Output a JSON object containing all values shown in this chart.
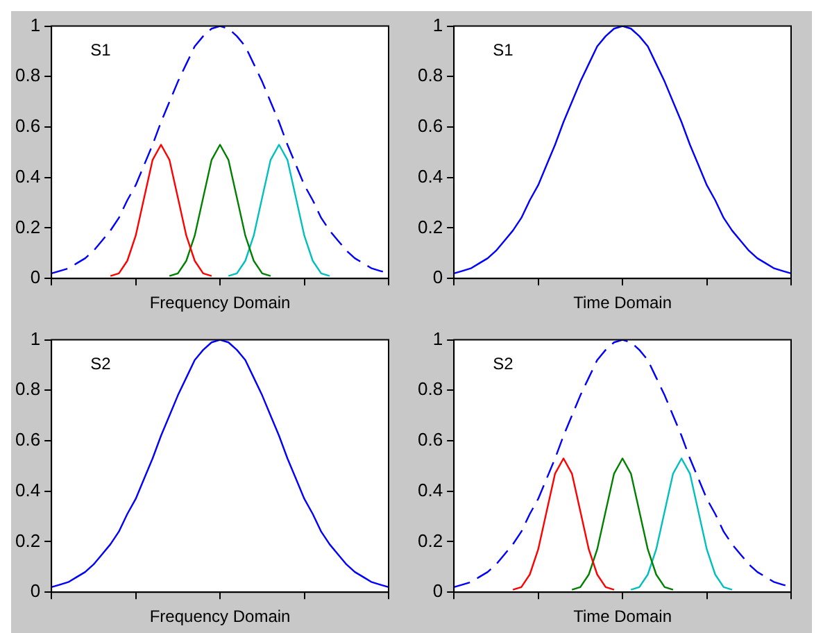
{
  "chart_data": [
    {
      "type": "line",
      "xlabel": "Frequency Domain",
      "annotations": [
        "S1"
      ],
      "categories": [
        null,
        null,
        null,
        null,
        null,
        null,
        null,
        null,
        null,
        null,
        null,
        null,
        null,
        null,
        null,
        null,
        null,
        null,
        null,
        null,
        null,
        null,
        null,
        null,
        null,
        null,
        null,
        null,
        null,
        null,
        null,
        null,
        null,
        null,
        null,
        null,
        null,
        null,
        null,
        null,
        null
      ],
      "ylim": [
        0,
        1
      ],
      "yticks": [
        0,
        0.2,
        0.4,
        0.6,
        0.8,
        1
      ],
      "tick_labels": "y",
      "series": [
        {
          "color": "#0000ff",
          "line_style": "dashed",
          "values": [
            0.02,
            0.03,
            0.04,
            0.06,
            0.08,
            0.11,
            0.15,
            0.19,
            0.24,
            0.31,
            0.37,
            0.45,
            0.53,
            0.62,
            0.7,
            0.78,
            0.85,
            0.92,
            0.96,
            0.99,
            1,
            0.99,
            0.96,
            0.92,
            0.85,
            0.78,
            0.7,
            0.62,
            0.53,
            0.45,
            0.37,
            0.31,
            0.24,
            0.19,
            0.15,
            0.11,
            0.08,
            0.06,
            0.04,
            0.03,
            0.02
          ]
        },
        {
          "color": "#ff0000",
          "line_style": "solid",
          "values": [
            null,
            null,
            null,
            null,
            null,
            null,
            null,
            0.01,
            0.02,
            0.07,
            0.17,
            0.32,
            0.47,
            0.53,
            0.47,
            0.32,
            0.17,
            0.07,
            0.02,
            0.01,
            null,
            null,
            null,
            null,
            null,
            null,
            null,
            null,
            null,
            null,
            null,
            null,
            null,
            null,
            null,
            null,
            null,
            null,
            null,
            null,
            null
          ]
        },
        {
          "color": "#008000",
          "line_style": "solid",
          "values": [
            null,
            null,
            null,
            null,
            null,
            null,
            null,
            null,
            null,
            null,
            null,
            null,
            null,
            null,
            0.01,
            0.02,
            0.07,
            0.17,
            0.32,
            0.47,
            0.53,
            0.47,
            0.32,
            0.17,
            0.07,
            0.02,
            0.01,
            null,
            null,
            null,
            null,
            null,
            null,
            null,
            null,
            null,
            null,
            null,
            null,
            null,
            null
          ]
        },
        {
          "color": "#00bfbf",
          "line_style": "solid",
          "values": [
            null,
            null,
            null,
            null,
            null,
            null,
            null,
            null,
            null,
            null,
            null,
            null,
            null,
            null,
            null,
            null,
            null,
            null,
            null,
            null,
            null,
            0.01,
            0.02,
            0.07,
            0.17,
            0.32,
            0.47,
            0.53,
            0.47,
            0.32,
            0.17,
            0.07,
            0.02,
            0.01,
            null,
            null,
            null,
            null,
            null,
            null,
            null
          ]
        }
      ]
    },
    {
      "type": "line",
      "xlabel": "Time Domain",
      "annotations": [
        "S1"
      ],
      "categories": [
        null,
        null,
        null,
        null,
        null,
        null,
        null,
        null,
        null,
        null,
        null,
        null,
        null,
        null,
        null,
        null,
        null,
        null,
        null,
        null,
        null,
        null,
        null,
        null,
        null,
        null,
        null,
        null,
        null,
        null,
        null,
        null,
        null,
        null,
        null,
        null,
        null,
        null,
        null,
        null,
        null
      ],
      "ylim": [
        0,
        1
      ],
      "yticks": [
        0,
        0.2,
        0.4,
        0.6,
        0.8,
        1
      ],
      "tick_labels": "y",
      "series": [
        {
          "color": "#0000ff",
          "line_style": "solid",
          "values": [
            0.02,
            0.03,
            0.04,
            0.06,
            0.08,
            0.11,
            0.15,
            0.19,
            0.24,
            0.31,
            0.37,
            0.45,
            0.53,
            0.62,
            0.7,
            0.78,
            0.85,
            0.92,
            0.96,
            0.99,
            1,
            0.99,
            0.96,
            0.92,
            0.85,
            0.78,
            0.7,
            0.62,
            0.53,
            0.45,
            0.37,
            0.31,
            0.24,
            0.19,
            0.15,
            0.11,
            0.08,
            0.06,
            0.04,
            0.03,
            0.02
          ]
        }
      ]
    },
    {
      "type": "line",
      "xlabel": "Frequency Domain",
      "annotations": [
        "S2"
      ],
      "categories": [
        null,
        null,
        null,
        null,
        null,
        null,
        null,
        null,
        null,
        null,
        null,
        null,
        null,
        null,
        null,
        null,
        null,
        null,
        null,
        null,
        null,
        null,
        null,
        null,
        null,
        null,
        null,
        null,
        null,
        null,
        null,
        null,
        null,
        null,
        null,
        null,
        null,
        null,
        null,
        null,
        null
      ],
      "ylim": [
        0,
        1
      ],
      "yticks": [
        0,
        0.2,
        0.4,
        0.6,
        0.8,
        1
      ],
      "tick_labels": "y",
      "series": [
        {
          "color": "#0000ff",
          "line_style": "solid",
          "values": [
            0.02,
            0.03,
            0.04,
            0.06,
            0.08,
            0.11,
            0.15,
            0.19,
            0.24,
            0.31,
            0.37,
            0.45,
            0.53,
            0.62,
            0.7,
            0.78,
            0.85,
            0.92,
            0.96,
            0.99,
            1,
            0.99,
            0.96,
            0.92,
            0.85,
            0.78,
            0.7,
            0.62,
            0.53,
            0.45,
            0.37,
            0.31,
            0.24,
            0.19,
            0.15,
            0.11,
            0.08,
            0.06,
            0.04,
            0.03,
            0.02
          ]
        }
      ]
    },
    {
      "type": "line",
      "xlabel": "Time Domain",
      "annotations": [
        "S2"
      ],
      "categories": [
        null,
        null,
        null,
        null,
        null,
        null,
        null,
        null,
        null,
        null,
        null,
        null,
        null,
        null,
        null,
        null,
        null,
        null,
        null,
        null,
        null,
        null,
        null,
        null,
        null,
        null,
        null,
        null,
        null,
        null,
        null,
        null,
        null,
        null,
        null,
        null,
        null,
        null,
        null,
        null,
        null
      ],
      "ylim": [
        0,
        1
      ],
      "yticks": [
        0,
        0.2,
        0.4,
        0.6,
        0.8,
        1
      ],
      "tick_labels": "y",
      "series": [
        {
          "color": "#0000ff",
          "line_style": "dashed",
          "values": [
            0.02,
            0.03,
            0.04,
            0.06,
            0.08,
            0.11,
            0.15,
            0.19,
            0.24,
            0.31,
            0.37,
            0.45,
            0.53,
            0.62,
            0.7,
            0.78,
            0.85,
            0.92,
            0.96,
            0.99,
            1,
            0.99,
            0.96,
            0.92,
            0.85,
            0.78,
            0.7,
            0.62,
            0.53,
            0.45,
            0.37,
            0.31,
            0.24,
            0.19,
            0.15,
            0.11,
            0.08,
            0.06,
            0.04,
            0.03,
            0.02
          ]
        },
        {
          "color": "#ff0000",
          "line_style": "solid",
          "values": [
            null,
            null,
            null,
            null,
            null,
            null,
            null,
            0.01,
            0.02,
            0.07,
            0.17,
            0.32,
            0.47,
            0.53,
            0.47,
            0.32,
            0.17,
            0.07,
            0.02,
            0.01,
            null,
            null,
            null,
            null,
            null,
            null,
            null,
            null,
            null,
            null,
            null,
            null,
            null,
            null,
            null,
            null,
            null,
            null,
            null,
            null,
            null
          ]
        },
        {
          "color": "#008000",
          "line_style": "solid",
          "values": [
            null,
            null,
            null,
            null,
            null,
            null,
            null,
            null,
            null,
            null,
            null,
            null,
            null,
            null,
            0.01,
            0.02,
            0.07,
            0.17,
            0.32,
            0.47,
            0.53,
            0.47,
            0.32,
            0.17,
            0.07,
            0.02,
            0.01,
            null,
            null,
            null,
            null,
            null,
            null,
            null,
            null,
            null,
            null,
            null,
            null,
            null,
            null
          ]
        },
        {
          "color": "#00bfbf",
          "line_style": "solid",
          "values": [
            null,
            null,
            null,
            null,
            null,
            null,
            null,
            null,
            null,
            null,
            null,
            null,
            null,
            null,
            null,
            null,
            null,
            null,
            null,
            null,
            null,
            0.01,
            0.02,
            0.07,
            0.17,
            0.32,
            0.47,
            0.53,
            0.47,
            0.32,
            0.17,
            0.07,
            0.02,
            0.01,
            null,
            null,
            null,
            null,
            null,
            null,
            null
          ]
        }
      ]
    }
  ]
}
